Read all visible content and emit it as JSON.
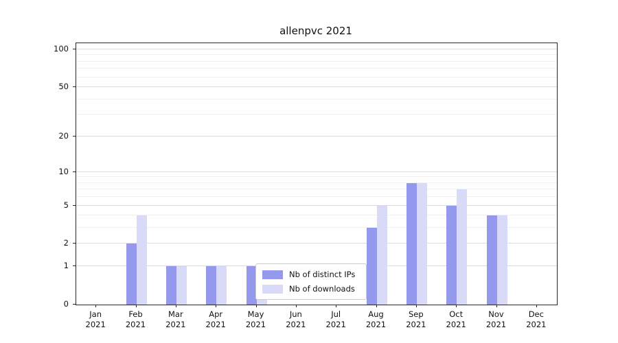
{
  "chart_data": {
    "type": "bar",
    "title": "allenpvc 2021",
    "categories": [
      "Jan",
      "Feb",
      "Mar",
      "Apr",
      "May",
      "Jun",
      "Jul",
      "Aug",
      "Sep",
      "Oct",
      "Nov",
      "Dec"
    ],
    "year": "2021",
    "series": [
      {
        "name": "Nb of distinct IPs",
        "color": "#9599ee",
        "values": [
          0,
          2,
          1,
          1,
          1,
          0,
          0,
          3,
          8,
          5,
          4,
          0
        ]
      },
      {
        "name": "Nb of downloads",
        "color": "#d8daf8",
        "values": [
          0,
          4,
          1,
          1,
          1,
          0,
          0,
          5,
          8,
          7,
          4,
          0
        ]
      }
    ],
    "yscale": "log(1+v)",
    "yticks": [
      0,
      1,
      2,
      5,
      10,
      20,
      50,
      100
    ],
    "minor_yticks": [
      3,
      4,
      6,
      7,
      8,
      9,
      30,
      40,
      60,
      70,
      80,
      90
    ],
    "ylim": [
      0,
      112
    ],
    "xlabel": "",
    "ylabel": "",
    "grid": "horizontal",
    "legend_position": "inside lower center"
  },
  "colors": {
    "grid_major": "#dcdcdc",
    "grid_minor": "#efefef",
    "axis": "#262626",
    "text": "#111111",
    "legend_border": "#cccccc",
    "legend_bg": "#ffffff"
  }
}
